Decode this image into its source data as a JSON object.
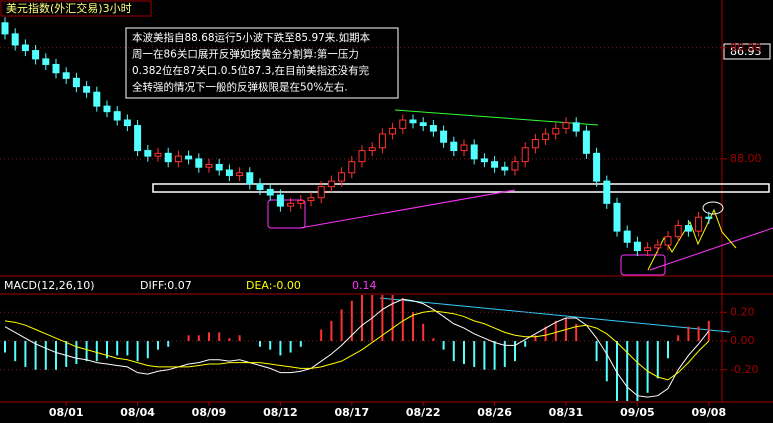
{
  "chart_data": {
    "type": "candlestick",
    "title": "美元指数(外汇交易)3小时",
    "annotation": [
      "本波美指自88.68运行5小波下跌至85.97来.如期本",
      "周一在86关口展开反弹如按黄金分割算:第一压力",
      "0.382位在87关口.0.5位87.3,在目前美指还没有完",
      "全转强的情况下一般的反弹极限是在50%左右."
    ],
    "categories": [
      null,
      null,
      null,
      null,
      null,
      null,
      "08/01",
      null,
      null,
      null,
      null,
      null,
      null,
      "08/04",
      null,
      null,
      null,
      null,
      null,
      null,
      "08/09",
      null,
      null,
      null,
      null,
      null,
      null,
      "08/12",
      null,
      null,
      null,
      null,
      null,
      null,
      "08/17",
      null,
      null,
      null,
      null,
      null,
      null,
      "08/22",
      null,
      null,
      null,
      null,
      null,
      null,
      "08/26",
      null,
      null,
      null,
      null,
      null,
      null,
      "08/31",
      null,
      null,
      null,
      null,
      null,
      null,
      "09/05",
      null,
      null,
      null,
      null,
      null,
      null,
      "09/08"
    ],
    "open": [
      90.45,
      90.25,
      90.05,
      89.95,
      89.8,
      89.7,
      89.55,
      89.45,
      89.3,
      89.2,
      88.95,
      88.85,
      88.7,
      88.6,
      88.15,
      88.05,
      88.1,
      87.95,
      88.05,
      88.0,
      87.85,
      87.9,
      87.8,
      87.7,
      87.75,
      87.55,
      87.45,
      87.35,
      87.15,
      87.2,
      87.25,
      87.3,
      87.5,
      87.6,
      87.75,
      87.95,
      88.15,
      88.2,
      88.45,
      88.55,
      88.7,
      88.65,
      88.6,
      88.5,
      88.3,
      88.15,
      88.25,
      88.0,
      87.95,
      87.85,
      87.8,
      87.95,
      88.2,
      88.35,
      88.45,
      88.55,
      88.65,
      88.5,
      88.1,
      87.6,
      87.2,
      86.7,
      86.5,
      86.35,
      86.4,
      86.45,
      86.6,
      86.8,
      86.7,
      86.95
    ],
    "high": [
      90.55,
      90.35,
      90.15,
      90.05,
      89.9,
      89.8,
      89.65,
      89.55,
      89.4,
      89.3,
      89.05,
      88.95,
      88.8,
      88.7,
      88.25,
      88.2,
      88.2,
      88.15,
      88.15,
      88.1,
      88.0,
      88.0,
      87.9,
      87.85,
      87.85,
      87.65,
      87.55,
      87.45,
      87.3,
      87.35,
      87.4,
      87.6,
      87.7,
      87.85,
      88.05,
      88.25,
      88.3,
      88.55,
      88.65,
      88.8,
      88.8,
      88.75,
      88.7,
      88.6,
      88.4,
      88.35,
      88.35,
      88.1,
      88.05,
      87.95,
      88.05,
      88.3,
      88.45,
      88.55,
      88.65,
      88.75,
      88.75,
      88.6,
      88.2,
      87.7,
      87.3,
      86.8,
      86.6,
      86.5,
      86.55,
      86.7,
      86.9,
      86.9,
      87.05,
      87.05
    ],
    "low": [
      90.15,
      89.95,
      89.85,
      89.7,
      89.6,
      89.45,
      89.35,
      89.2,
      89.1,
      88.85,
      88.75,
      88.6,
      88.5,
      88.05,
      87.95,
      87.95,
      87.85,
      87.85,
      87.9,
      87.75,
      87.75,
      87.7,
      87.6,
      87.6,
      87.45,
      87.35,
      87.25,
      87.05,
      87.05,
      87.1,
      87.15,
      87.2,
      87.4,
      87.5,
      87.65,
      87.85,
      88.05,
      88.1,
      88.35,
      88.45,
      88.55,
      88.5,
      88.4,
      88.2,
      88.05,
      88.05,
      87.9,
      87.85,
      87.75,
      87.7,
      87.7,
      87.85,
      88.1,
      88.25,
      88.35,
      88.45,
      88.4,
      88.0,
      87.5,
      87.1,
      86.6,
      86.4,
      86.25,
      86.25,
      86.3,
      86.35,
      86.5,
      86.6,
      86.6,
      86.83
    ],
    "close": [
      90.25,
      90.05,
      89.95,
      89.8,
      89.7,
      89.55,
      89.45,
      89.3,
      89.2,
      88.95,
      88.85,
      88.7,
      88.6,
      88.15,
      88.05,
      88.1,
      87.95,
      88.05,
      88.0,
      87.85,
      87.9,
      87.8,
      87.7,
      87.75,
      87.55,
      87.45,
      87.35,
      87.15,
      87.2,
      87.25,
      87.3,
      87.5,
      87.6,
      87.75,
      87.95,
      88.15,
      88.2,
      88.45,
      88.55,
      88.7,
      88.65,
      88.6,
      88.5,
      88.3,
      88.15,
      88.25,
      88.0,
      87.95,
      87.85,
      87.8,
      87.95,
      88.2,
      88.35,
      88.45,
      88.55,
      88.65,
      88.5,
      88.1,
      87.6,
      87.2,
      86.7,
      86.5,
      86.35,
      86.4,
      86.45,
      86.6,
      86.8,
      86.7,
      86.95,
      86.93
    ],
    "up_color": "#ff3232",
    "down_color": "#54ffff",
    "ylim": [
      85.91,
      90.59
    ],
    "yticks": [
      {
        "value": 88,
        "label": "88.00"
      },
      {
        "value": 90,
        "label": "90.00"
      }
    ],
    "grid": true,
    "macd": {
      "title": "MACD(12,26,10)",
      "indicator_labels": [
        "DIFF:0.07",
        "DEA:-0.00",
        "0.14"
      ],
      "diff": {
        "color": "#ffffff",
        "values": [
          0.1,
          0.06,
          0.02,
          -0.02,
          -0.05,
          -0.08,
          -0.1,
          -0.12,
          -0.13,
          -0.15,
          -0.16,
          -0.17,
          -0.18,
          -0.22,
          -0.23,
          -0.21,
          -0.2,
          -0.18,
          -0.16,
          -0.15,
          -0.13,
          -0.13,
          -0.14,
          -0.13,
          -0.15,
          -0.17,
          -0.19,
          -0.22,
          -0.22,
          -0.21,
          -0.19,
          -0.14,
          -0.09,
          -0.03,
          0.04,
          0.11,
          0.16,
          0.22,
          0.26,
          0.29,
          0.28,
          0.26,
          0.22,
          0.17,
          0.12,
          0.09,
          0.05,
          0.02,
          -0.01,
          -0.03,
          -0.03,
          0.01,
          0.05,
          0.09,
          0.13,
          0.16,
          0.16,
          0.11,
          0.02,
          -0.09,
          -0.22,
          -0.32,
          -0.38,
          -0.39,
          -0.38,
          -0.33,
          -0.2,
          -0.1,
          -0.02,
          0.07
        ]
      },
      "dea": {
        "color": "#ffff00",
        "values": [
          0.14,
          0.13,
          0.11,
          0.08,
          0.05,
          0.02,
          -0.01,
          -0.04,
          -0.06,
          -0.08,
          -0.1,
          -0.12,
          -0.13,
          -0.15,
          -0.17,
          -0.18,
          -0.18,
          -0.18,
          -0.18,
          -0.17,
          -0.16,
          -0.16,
          -0.15,
          -0.15,
          -0.15,
          -0.15,
          -0.16,
          -0.17,
          -0.18,
          -0.19,
          -0.19,
          -0.18,
          -0.16,
          -0.14,
          -0.1,
          -0.06,
          -0.01,
          0.04,
          0.09,
          0.14,
          0.18,
          0.2,
          0.21,
          0.2,
          0.19,
          0.17,
          0.14,
          0.12,
          0.09,
          0.06,
          0.04,
          0.03,
          0.03,
          0.04,
          0.06,
          0.08,
          0.1,
          0.11,
          0.09,
          0.05,
          -0.01,
          -0.08,
          -0.15,
          -0.21,
          -0.25,
          -0.27,
          -0.22,
          -0.15,
          -0.07,
          -0.0
        ]
      },
      "hist": {
        "values": [
          -0.08,
          -0.14,
          -0.18,
          -0.2,
          -0.2,
          -0.2,
          -0.18,
          -0.16,
          -0.14,
          -0.14,
          -0.12,
          -0.1,
          -0.1,
          -0.14,
          -0.12,
          -0.06,
          -0.04,
          0.0,
          0.04,
          0.04,
          0.06,
          0.06,
          0.02,
          0.04,
          0.0,
          -0.04,
          -0.06,
          -0.1,
          -0.08,
          -0.04,
          0.0,
          0.08,
          0.14,
          0.22,
          0.28,
          0.34,
          0.34,
          0.36,
          0.34,
          0.3,
          0.2,
          0.12,
          0.02,
          -0.06,
          -0.14,
          -0.16,
          -0.18,
          -0.2,
          -0.2,
          -0.18,
          -0.14,
          -0.04,
          0.04,
          0.1,
          0.14,
          0.16,
          0.12,
          0.0,
          -0.14,
          -0.28,
          -0.42,
          -0.48,
          -0.46,
          -0.36,
          -0.26,
          -0.12,
          0.04,
          0.1,
          0.1,
          0.14
        ]
      },
      "ylim": [
        -0.41,
        0.32
      ],
      "yticks": [
        {
          "value": -0.2,
          "label": "-0.20"
        },
        {
          "value": 0,
          "label": "0.00"
        },
        {
          "value": 0.2,
          "label": "0.20"
        }
      ]
    }
  }
}
